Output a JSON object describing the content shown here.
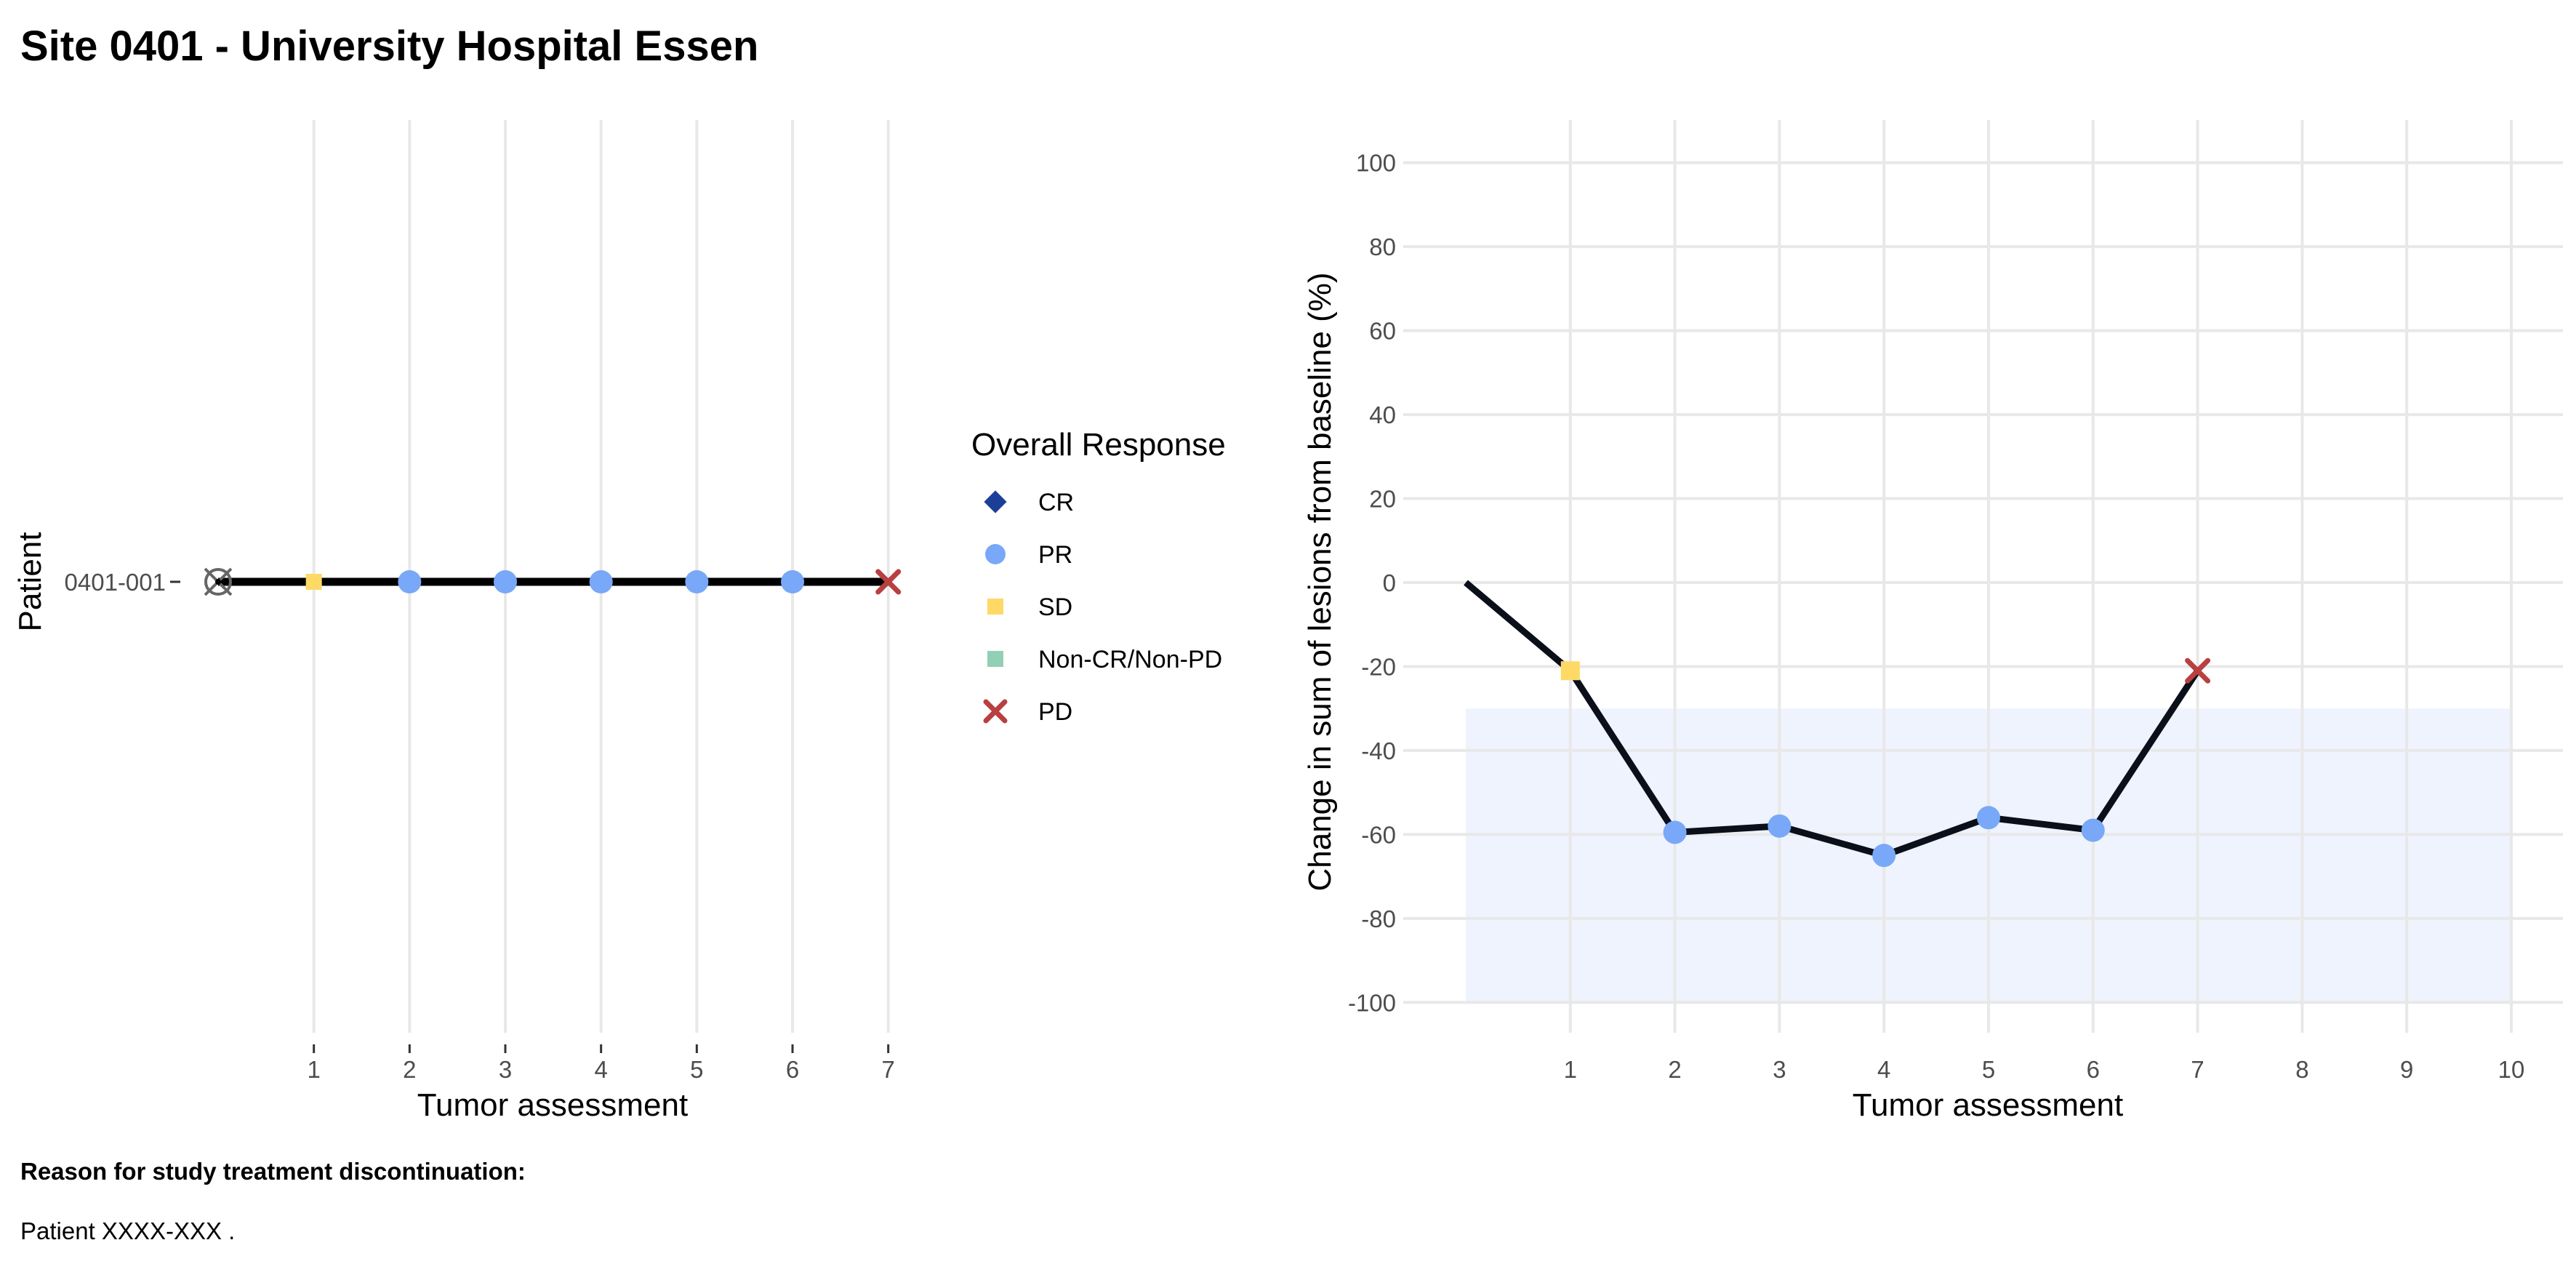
{
  "page": {
    "title": "Site 0401 - University Hospital Essen",
    "reason_heading": "Reason for study treatment discontinuation:",
    "reason_text": "Patient XXXX-XXX ."
  },
  "colors": {
    "CR": "#1b3f99",
    "PR": "#78a8f7",
    "SD": "#ffd966",
    "Non-CR/Non-PD": "#93cfb4",
    "PD": "#b84040",
    "line": "#000000",
    "shade": "#eef3fd",
    "grid": "#e8e8e8"
  },
  "legend": {
    "title": "Overall Response",
    "items": [
      {
        "label": "CR",
        "shape": "diamond"
      },
      {
        "label": "PR",
        "shape": "circle"
      },
      {
        "label": "SD",
        "shape": "square"
      },
      {
        "label": "Non-CR/Non-PD",
        "shape": "square"
      },
      {
        "label": "PD",
        "shape": "cross"
      }
    ]
  },
  "chart_data": [
    {
      "type": "line",
      "xlabel": "Tumor assessment",
      "ylabel": "Patient",
      "x_ticks": [
        1,
        2,
        3,
        4,
        5,
        6,
        7
      ],
      "categories": [
        "0401-001"
      ],
      "series": [
        {
          "patient": "0401-001",
          "start_marker": "discontinuation-target-icon",
          "points": [
            {
              "x": 1,
              "response": "SD"
            },
            {
              "x": 2,
              "response": "PR"
            },
            {
              "x": 3,
              "response": "PR"
            },
            {
              "x": 4,
              "response": "PR"
            },
            {
              "x": 5,
              "response": "PR"
            },
            {
              "x": 6,
              "response": "PR"
            },
            {
              "x": 7,
              "response": "PD"
            }
          ]
        }
      ],
      "grid": true
    },
    {
      "type": "line",
      "xlabel": "Tumor assessment",
      "ylabel": "Change in sum of lesions from baseline (%)",
      "x_ticks": [
        1,
        2,
        3,
        4,
        5,
        6,
        7,
        8,
        9,
        10
      ],
      "y_ticks": [
        100,
        80,
        60,
        40,
        20,
        0,
        -20,
        -40,
        -60,
        -80,
        -100
      ],
      "xlim": [
        0,
        10
      ],
      "ylim": [
        -100,
        100
      ],
      "shaded_region": {
        "x": [
          0,
          10
        ],
        "y": [
          -100,
          -30
        ]
      },
      "grid": true,
      "points": [
        {
          "x": 0,
          "y": 0,
          "response": null
        },
        {
          "x": 1,
          "y": -21,
          "response": "SD"
        },
        {
          "x": 2,
          "y": -59.5,
          "response": "PR"
        },
        {
          "x": 3,
          "y": -58,
          "response": "PR"
        },
        {
          "x": 4,
          "y": -65,
          "response": "PR"
        },
        {
          "x": 5,
          "y": -56,
          "response": "PR"
        },
        {
          "x": 6,
          "y": -59,
          "response": "PR"
        },
        {
          "x": 7,
          "y": -21,
          "response": "PD"
        }
      ]
    }
  ]
}
